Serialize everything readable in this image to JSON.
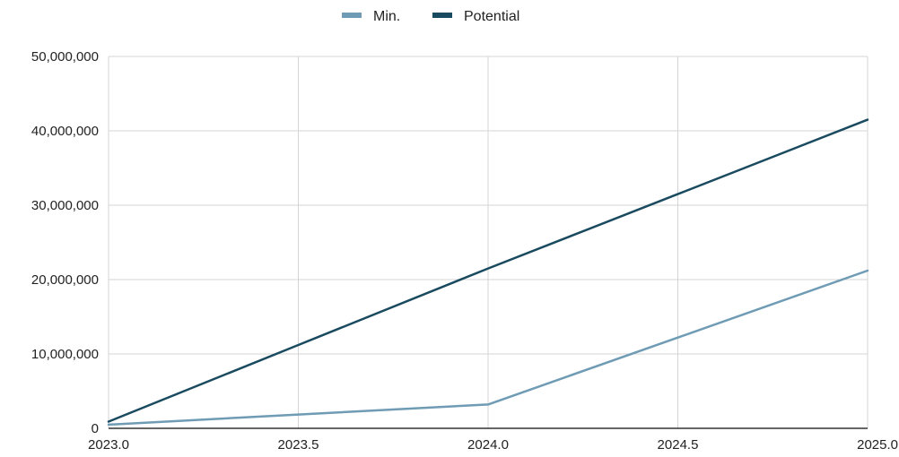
{
  "chart_data": {
    "type": "line",
    "title": "",
    "xlabel": "",
    "ylabel": "",
    "legend": "top-center",
    "grid": true,
    "x": [
      2023.0,
      2023.5,
      2024.0,
      2024.5,
      2025.0
    ],
    "xlim": [
      2023.0,
      2025.0
    ],
    "ylim": [
      0,
      50000000
    ],
    "x_ticks": [
      "2023.0",
      "2023.5",
      "2024.0",
      "2024.5",
      "2025.0"
    ],
    "y_ticks": [
      "0",
      "10,000,000",
      "20,000,000",
      "30,000,000",
      "40,000,000",
      "50,000,000"
    ],
    "series": [
      {
        "name": "Min.",
        "color": "#6f9bb5",
        "values": [
          500000,
          1850000,
          3200000,
          12200000,
          21200000
        ]
      },
      {
        "name": "Potential",
        "color": "#1a4a5f",
        "values": [
          900000,
          11200000,
          21500000,
          31500000,
          41500000
        ]
      }
    ]
  }
}
